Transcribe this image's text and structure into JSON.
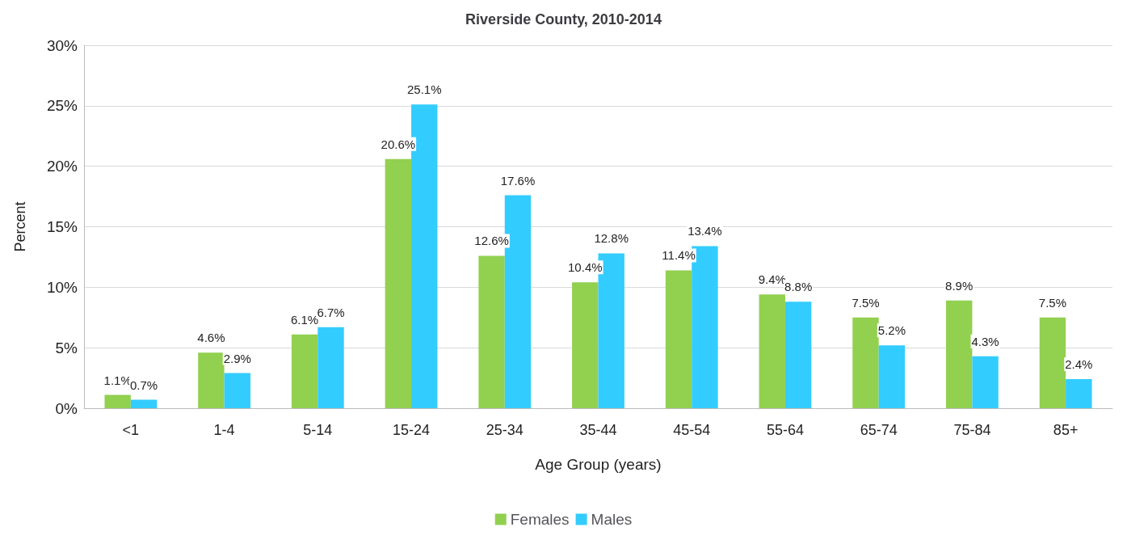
{
  "chart_data": {
    "type": "bar",
    "title": "Riverside County, 2010-2014",
    "xlabel": "Age Group (years)",
    "ylabel": "Percent",
    "categories": [
      "<1",
      "1-4",
      "5-14",
      "15-24",
      "25-34",
      "35-44",
      "45-54",
      "55-64",
      "65-74",
      "75-84",
      "85+"
    ],
    "series": [
      {
        "name": "Females",
        "color": "#92d050",
        "values": [
          1.1,
          4.6,
          6.1,
          20.6,
          12.6,
          10.4,
          11.4,
          9.4,
          7.5,
          8.9,
          7.5
        ],
        "value_labels": [
          "1.1%",
          "4.6%",
          "6.1%",
          "20.6%",
          "12.6%",
          "10.4%",
          "11.4%",
          "9.4%",
          "7.5%",
          "8.9%",
          "7.5%"
        ]
      },
      {
        "name": "Males",
        "color": "#33ccff",
        "values": [
          0.7,
          2.9,
          6.7,
          25.1,
          17.6,
          12.8,
          13.4,
          8.8,
          5.2,
          4.3,
          2.4
        ],
        "value_labels": [
          "0.7%",
          "2.9%",
          "6.7%",
          "25.1%",
          "17.6%",
          "12.8%",
          "13.4%",
          "8.8%",
          "5.2%",
          "4.3%",
          "2.4%"
        ]
      }
    ],
    "ylim": [
      0,
      30
    ],
    "yticks": [
      {
        "value": 0,
        "label": "0%"
      },
      {
        "value": 5,
        "label": "5%"
      },
      {
        "value": 10,
        "label": "10%"
      },
      {
        "value": 15,
        "label": "15%"
      },
      {
        "value": 20,
        "label": "20%"
      },
      {
        "value": 25,
        "label": "25%"
      },
      {
        "value": 30,
        "label": "30%"
      }
    ],
    "grid": "y",
    "legend": "bottom"
  }
}
